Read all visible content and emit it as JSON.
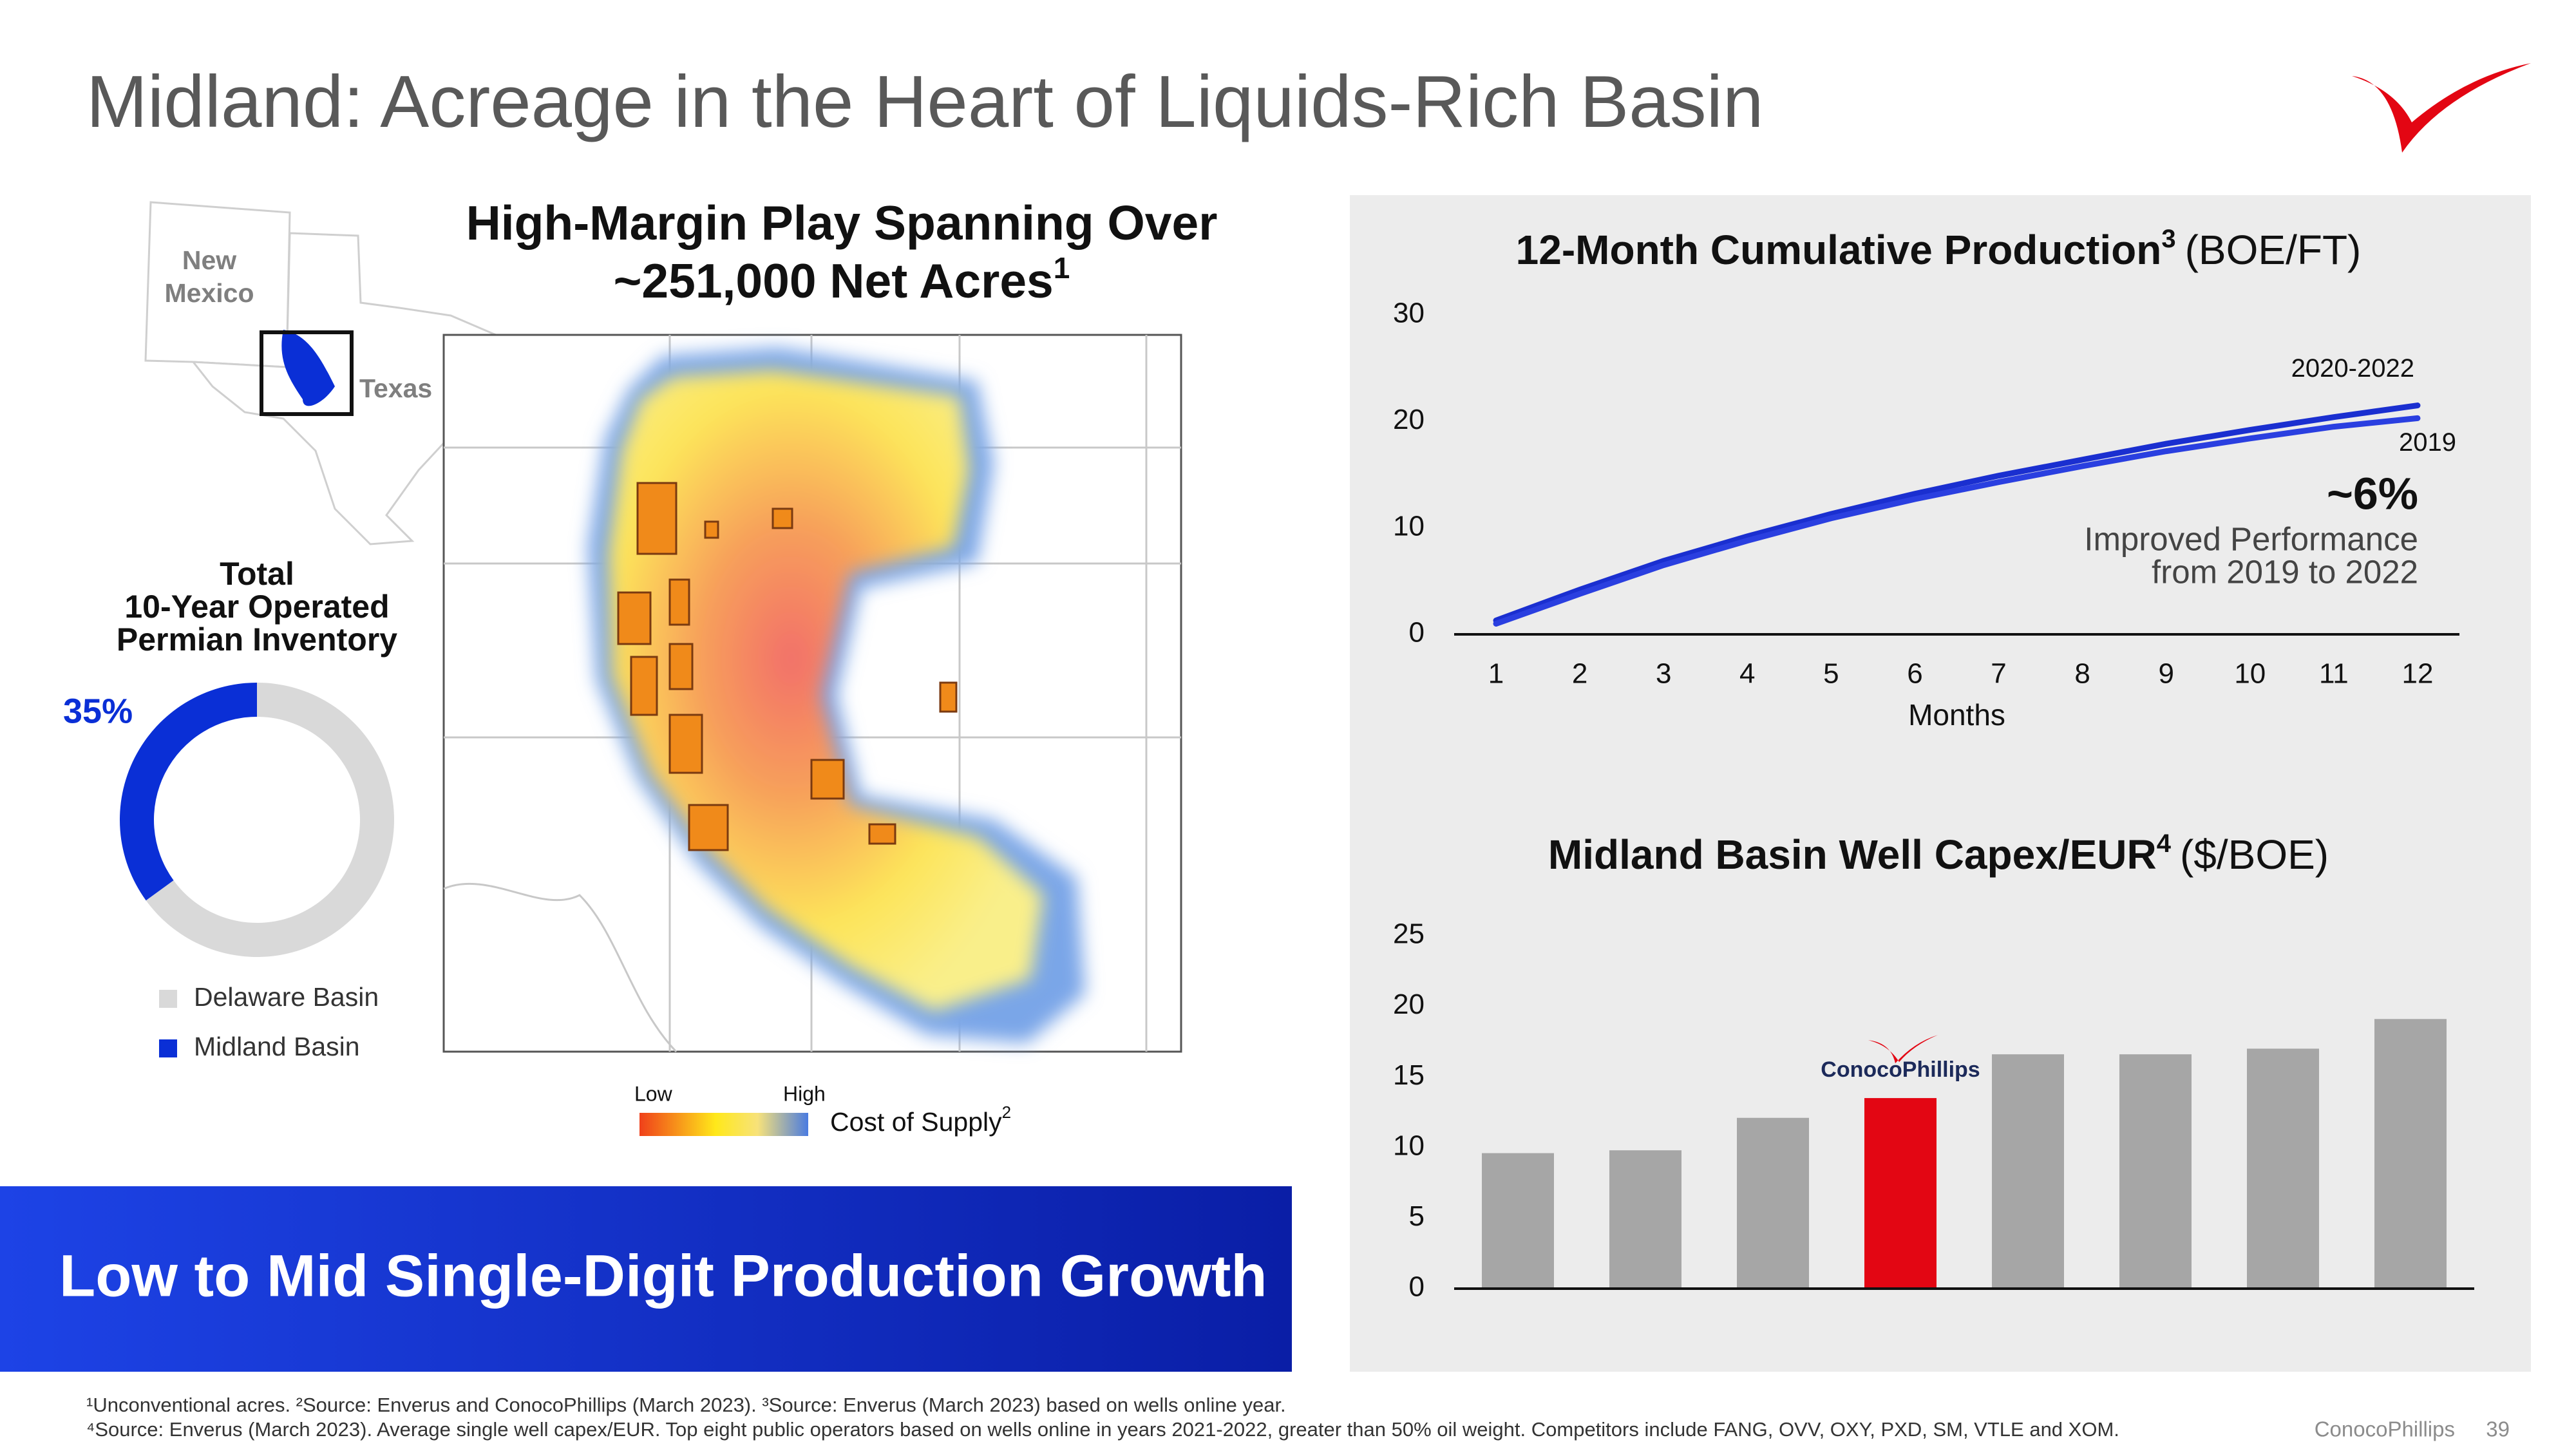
{
  "title": "Midland: Acreage in the Heart of Liquids-Rich Basin",
  "map": {
    "title_lines": [
      "High-Margin Play Spanning Over",
      "~251,000 Net Acres"
    ],
    "title_sup": "1",
    "state_labels": {
      "new_mexico": [
        "New",
        "Mexico"
      ],
      "texas": "Texas"
    },
    "legend_low": "Low",
    "legend_high": "High",
    "legend_label": "Cost of Supply",
    "legend_sup": "2"
  },
  "banner": "Low to Mid Single-Digit Production Growth",
  "footnotes": [
    "¹Unconventional acres. ²Source: Enverus and ConocoPhillips (March 2023). ³Source: Enverus (March 2023) based on wells online year.",
    "⁴Source: Enverus (March 2023). Average single well capex/EUR. Top eight public operators based on wells online in years 2021-2022, greater than 50% oil weight. Competitors include FANG, OVV, OXY, PXD, SM, VTLE and XOM."
  ],
  "footer": {
    "company": "ConocoPhillips",
    "page": "39"
  },
  "chart_data": [
    {
      "type": "pie",
      "title_lines": [
        "Total",
        "10-Year Operated",
        "Permian Inventory"
      ],
      "categories": [
        "Delaware Basin",
        "Midland Basin"
      ],
      "values": [
        65,
        35
      ],
      "value_labels": [
        null,
        "35%"
      ],
      "colors": [
        "#d9d9d9",
        "#0a2fd6"
      ],
      "donut": true
    },
    {
      "type": "line",
      "title": "12-Month Cumulative Production",
      "title_sup": "3",
      "title_unit": "(BOE/FT)",
      "x_label": "Months",
      "x": [
        1,
        2,
        3,
        4,
        5,
        6,
        7,
        8,
        9,
        10,
        11,
        12
      ],
      "xlim": [
        0.5,
        12.5
      ],
      "xticks": [
        1,
        2,
        3,
        4,
        5,
        6,
        7,
        8,
        9,
        10,
        11,
        12
      ],
      "ylim": [
        0,
        30
      ],
      "yticks": [
        0,
        10,
        20,
        30
      ],
      "series": [
        {
          "name": "2020-2022",
          "color": "#1a2fd0",
          "values": [
            1.3,
            4.2,
            6.9,
            9.2,
            11.3,
            13.2,
            14.9,
            16.4,
            17.9,
            19.2,
            20.4,
            21.5
          ]
        },
        {
          "name": "2019",
          "color": "#2a3fe0",
          "values": [
            1.0,
            3.8,
            6.5,
            8.8,
            10.9,
            12.7,
            14.3,
            15.8,
            17.2,
            18.4,
            19.5,
            20.3
          ]
        }
      ],
      "annotations": [
        "~6%",
        "Improved Performance",
        "from 2019 to 2022"
      ]
    },
    {
      "type": "bar",
      "title": "Midland Basin Well Capex/EUR",
      "title_sup": "4",
      "title_unit": "($/BOE)",
      "categories": [
        null,
        null,
        null,
        "ConocoPhillips",
        null,
        null,
        null,
        null
      ],
      "values": [
        9.6,
        9.8,
        12.1,
        13.5,
        16.6,
        16.6,
        17.0,
        19.1
      ],
      "colors": [
        "#a6a6a6",
        "#a6a6a6",
        "#a6a6a6",
        "#e30613",
        "#a6a6a6",
        "#a6a6a6",
        "#a6a6a6",
        "#a6a6a6"
      ],
      "ylim": [
        0,
        25
      ],
      "yticks": [
        0,
        5,
        10,
        15,
        20,
        25
      ]
    }
  ]
}
